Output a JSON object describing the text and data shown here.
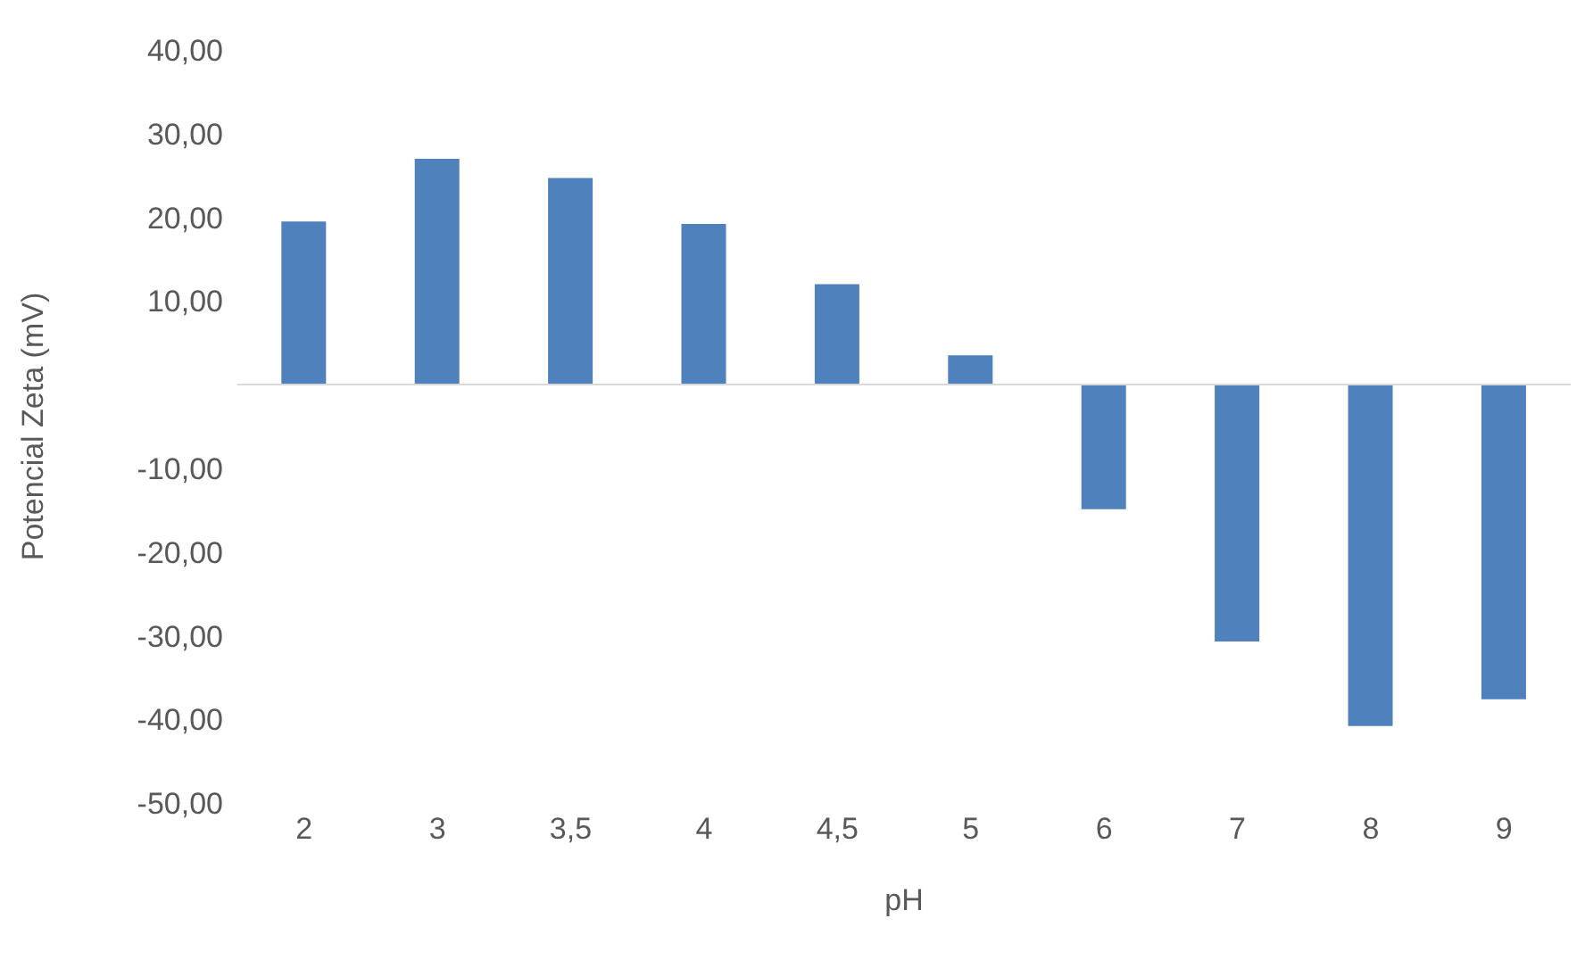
{
  "chart_data": {
    "type": "bar",
    "xlabel": "pH",
    "ylabel": "Potencial Zeta (mV)",
    "categories": [
      "2",
      "3",
      "3,5",
      "4",
      "4,5",
      "5",
      "6",
      "7",
      "8",
      "9"
    ],
    "values": [
      19.5,
      27,
      24.7,
      19.2,
      12,
      3.5,
      -14.9,
      -30.7,
      -40.8,
      -37.6
    ],
    "color": "#4f81bd",
    "ylim": [
      -50,
      40
    ],
    "yticks": [
      {
        "value": -50,
        "label": "-50,00"
      },
      {
        "value": -40,
        "label": "-40,00"
      },
      {
        "value": -30,
        "label": "-30,00"
      },
      {
        "value": -20,
        "label": "-20,00"
      },
      {
        "value": -10,
        "label": "-10,00"
      },
      {
        "value": 10,
        "label": "10,00"
      },
      {
        "value": 20,
        "label": "20,00"
      },
      {
        "value": 30,
        "label": "30,00"
      },
      {
        "value": 40,
        "label": "40,00"
      }
    ],
    "grid": false,
    "legend": false
  }
}
